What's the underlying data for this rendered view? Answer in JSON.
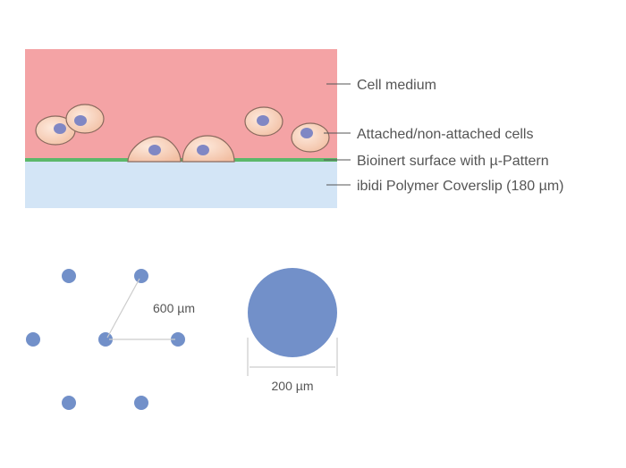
{
  "labels": {
    "medium": "Cell medium",
    "cells": "Attached/non-attached cells",
    "surface": "Bioinert surface with µ-Pattern",
    "coverslip": "ibidi Polymer Coverslip (180 µm)"
  },
  "dimensions": {
    "spacing": "600 µm",
    "diameter": "200 µm"
  },
  "colors": {
    "medium": "#f4a3a5",
    "surface": "#5cb86a",
    "coverslip": "#d3e5f6",
    "cell": "#f7cdb5",
    "nucleus": "#8087c4",
    "pattern_dot": "#7290c9"
  }
}
